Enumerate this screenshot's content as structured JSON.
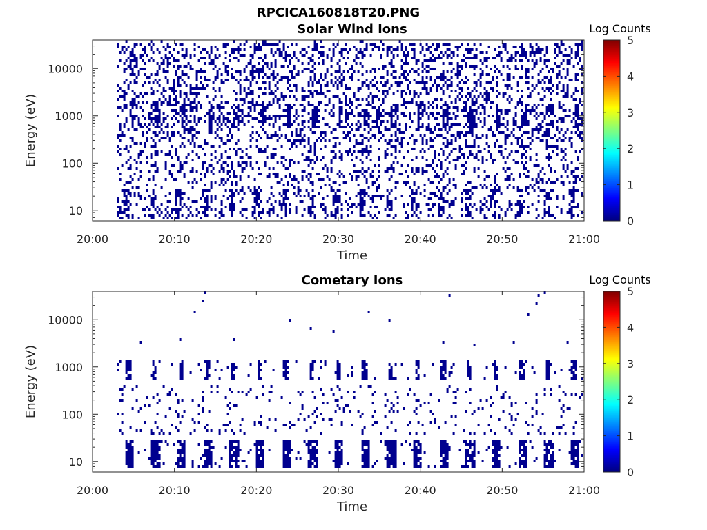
{
  "figure_title": "RPCICA160818T20.PNG",
  "colormap": {
    "name": "jet",
    "stops": [
      "#00007f",
      "#0000ff",
      "#007fff",
      "#00ffff",
      "#7fff7f",
      "#ffff00",
      "#ff7f00",
      "#ff0000",
      "#7f0000"
    ]
  },
  "chart_data": [
    {
      "type": "heatmap",
      "title": "Solar Wind Ions",
      "xlabel": "Time",
      "ylabel": "Energy (eV)",
      "y_scale": "log",
      "xlim": [
        "20:00",
        "21:00"
      ],
      "ylim": [
        6,
        40000
      ],
      "x_ticks": [
        "20:00",
        "20:10",
        "20:20",
        "20:30",
        "20:40",
        "20:50",
        "21:00"
      ],
      "y_ticks": [
        10,
        100,
        1000,
        10000
      ],
      "y_tick_labels": [
        "10",
        "100",
        "1000",
        "10000"
      ],
      "data_start": "20:03",
      "data_end": "21:00",
      "sweep_period_min": 3.2,
      "grid": false,
      "colorbar": {
        "label": "Log Counts",
        "range": [
          0,
          5
        ],
        "ticks": [
          "0",
          "1",
          "2",
          "3",
          "4",
          "5"
        ]
      },
      "summary": "Sparse counts of about 0-1 log counts across all energies; denser patches near 1000 eV and at 10-30 eV repeating with each energy sweep"
    },
    {
      "type": "heatmap",
      "title": "Cometary Ions",
      "xlabel": "Time",
      "ylabel": "Energy (eV)",
      "y_scale": "log",
      "xlim": [
        "20:00",
        "21:00"
      ],
      "ylim": [
        6,
        40000
      ],
      "x_ticks": [
        "20:00",
        "20:10",
        "20:20",
        "20:30",
        "20:40",
        "20:50",
        "21:00"
      ],
      "y_ticks": [
        10,
        100,
        1000,
        10000
      ],
      "y_tick_labels": [
        "10",
        "100",
        "1000",
        "10000"
      ],
      "data_start": "20:03",
      "data_end": "21:00",
      "sweep_period_min": 3.2,
      "grid": false,
      "colorbar": {
        "label": "Log Counts",
        "range": [
          0,
          5
        ],
        "ticks": [
          "0",
          "1",
          "2",
          "3",
          "4",
          "5"
        ]
      },
      "summary": "Dense blocks of counts at 8-30 eV and clusters near 1000 eV repeating with each energy sweep; sparse scattered counts at 40-400 eV"
    }
  ]
}
